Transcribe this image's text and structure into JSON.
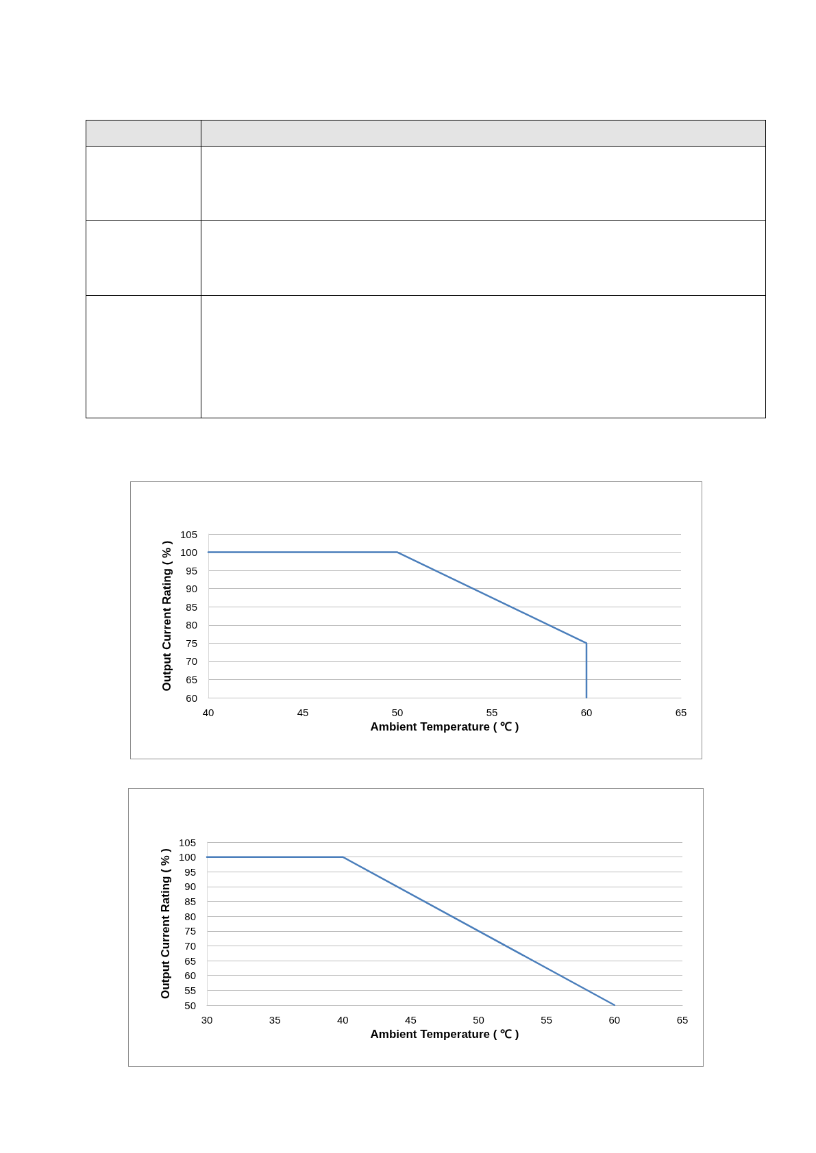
{
  "chart_data": [
    {
      "type": "line",
      "xlabel": "Ambient Temperature ( ℃ )",
      "ylabel": "Output Current Rating ( % )",
      "x": [
        40,
        50,
        60,
        60
      ],
      "values": [
        100,
        100,
        75,
        60
      ],
      "color": "#4a7ebb",
      "xlim": [
        40,
        65
      ],
      "xticks": [
        40,
        45,
        50,
        55,
        60,
        65
      ],
      "ylim": [
        60,
        105
      ],
      "yticks": [
        60,
        65,
        70,
        75,
        80,
        85,
        90,
        95,
        100,
        105
      ],
      "grid": "y",
      "marker": "none",
      "line_style": "solid"
    },
    {
      "type": "line",
      "xlabel": "Ambient Temperature ( ℃ )",
      "ylabel": "Output Current Rating ( % )",
      "x": [
        30,
        40,
        60
      ],
      "values": [
        100,
        100,
        50
      ],
      "color": "#4a7ebb",
      "xlim": [
        30,
        65
      ],
      "xticks": [
        30,
        35,
        40,
        45,
        50,
        55,
        60,
        65
      ],
      "ylim": [
        50,
        105
      ],
      "yticks": [
        50,
        55,
        60,
        65,
        70,
        75,
        80,
        85,
        90,
        95,
        100,
        105
      ],
      "grid": "y",
      "marker": "none",
      "line_style": "solid"
    }
  ]
}
